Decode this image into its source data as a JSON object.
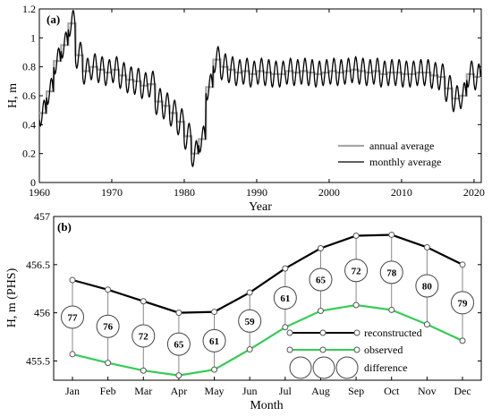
{
  "chart_data": [
    {
      "panel_label": "(a)",
      "type": "line",
      "xlabel": "Year",
      "ylabel": "H, m",
      "xlim": [
        1960,
        2021
      ],
      "ylim": [
        0,
        1.2
      ],
      "xticks": [
        "1960",
        "1970",
        "1980",
        "1990",
        "2000",
        "2010",
        "2020"
      ],
      "yticks": [
        "0",
        "0.2",
        "0.4",
        "0.6",
        "0.8",
        "1",
        "1.2"
      ],
      "legend_position": "bottom-right",
      "series": [
        {
          "name": "annual average",
          "color": "#a6a6a6",
          "x": [
            1960,
            1961,
            1962,
            1963,
            1964,
            1965,
            1966,
            1967,
            1968,
            1969,
            1970,
            1971,
            1972,
            1973,
            1974,
            1975,
            1976,
            1977,
            1978,
            1979,
            1980,
            1981,
            1982,
            1983,
            1984,
            1985,
            1986,
            1987,
            1988,
            1989,
            1990,
            1991,
            1992,
            1993,
            1994,
            1995,
            1996,
            1997,
            1998,
            1999,
            2000,
            2001,
            2002,
            2003,
            2004,
            2005,
            2006,
            2007,
            2008,
            2009,
            2010,
            2011,
            2012,
            2013,
            2014,
            2015,
            2016,
            2017,
            2018,
            2019,
            2020
          ],
          "values": [
            0.48,
            0.63,
            0.84,
            0.95,
            1.1,
            0.88,
            0.77,
            0.8,
            0.78,
            0.76,
            0.78,
            0.74,
            0.71,
            0.7,
            0.67,
            0.68,
            0.56,
            0.53,
            0.48,
            0.42,
            0.32,
            0.2,
            0.3,
            0.66,
            0.85,
            0.8,
            0.78,
            0.76,
            0.77,
            0.75,
            0.77,
            0.76,
            0.75,
            0.75,
            0.77,
            0.76,
            0.77,
            0.76,
            0.75,
            0.76,
            0.77,
            0.76,
            0.77,
            0.78,
            0.77,
            0.76,
            0.77,
            0.75,
            0.76,
            0.76,
            0.75,
            0.75,
            0.76,
            0.76,
            0.74,
            0.73,
            0.65,
            0.58,
            0.6,
            0.75,
            0.73
          ]
        },
        {
          "name": "monthly average",
          "color": "#000000",
          "amplitude": 0.09,
          "peak_month": 9
        }
      ]
    },
    {
      "panel_label": "(b)",
      "type": "line",
      "xlabel": "Month",
      "ylabel": "H, m (PHS)",
      "ylim": [
        455.3,
        457
      ],
      "yticks": [
        "455.5",
        "456",
        "456.5",
        "457"
      ],
      "categories": [
        "Jan",
        "Feb",
        "Mar",
        "Apr",
        "May",
        "Jun",
        "Jul",
        "Aug",
        "Sep",
        "Oct",
        "Nov",
        "Dec"
      ],
      "series": [
        {
          "name": "reconstructed",
          "color": "#000000",
          "values": [
            456.34,
            456.24,
            456.12,
            456.0,
            456.01,
            456.21,
            456.46,
            456.67,
            456.8,
            456.81,
            456.68,
            456.5
          ]
        },
        {
          "name": "observed",
          "color": "#33cc55",
          "values": [
            455.57,
            455.48,
            455.4,
            455.35,
            455.41,
            455.62,
            455.85,
            456.02,
            456.08,
            456.03,
            455.88,
            455.71
          ]
        }
      ],
      "difference": {
        "name": "difference",
        "values": [
          "77",
          "76",
          "72",
          "65",
          "61",
          "59",
          "61",
          "65",
          "72",
          "78",
          "80",
          "79"
        ]
      }
    }
  ]
}
